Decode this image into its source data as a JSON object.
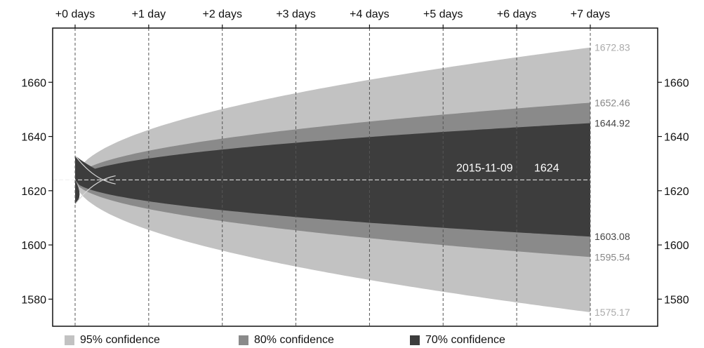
{
  "chart_data": {
    "type": "area",
    "title": "",
    "x_ticks": [
      "+0 days",
      "+1 day",
      "+2 days",
      "+3 days",
      "+4 days",
      "+5 days",
      "+6 days",
      "+7 days"
    ],
    "x_range": [
      0,
      7
    ],
    "y_ticks": [
      1580,
      1600,
      1620,
      1640,
      1660
    ],
    "ylim": [
      1570,
      1680
    ],
    "grid": "dashed vertical lines at each day",
    "center": {
      "date": "2015-11-09",
      "value": 1624
    },
    "start_band": {
      "x": 0,
      "lower": 1615,
      "upper": 1633
    },
    "bands": [
      {
        "name": "95% confidence",
        "color": "#c2c2c2",
        "label_color": "#aaaaaa",
        "end_upper": 1672.83,
        "end_lower": 1575.17,
        "end_upper_label": "1672.83",
        "end_lower_label": "1575.17"
      },
      {
        "name": "80% confidence",
        "color": "#8a8a8a",
        "label_color": "#888888",
        "end_upper": 1652.46,
        "end_lower": 1595.54,
        "end_upper_label": "1652.46",
        "end_lower_label": "1595.54"
      },
      {
        "name": "70% confidence",
        "color": "#3d3d3d",
        "label_color": "#444444",
        "end_upper": 1644.92,
        "end_lower": 1603.08,
        "end_upper_label": "1644.92",
        "end_lower_label": "1603.08"
      }
    ],
    "legend_position": "bottom"
  }
}
